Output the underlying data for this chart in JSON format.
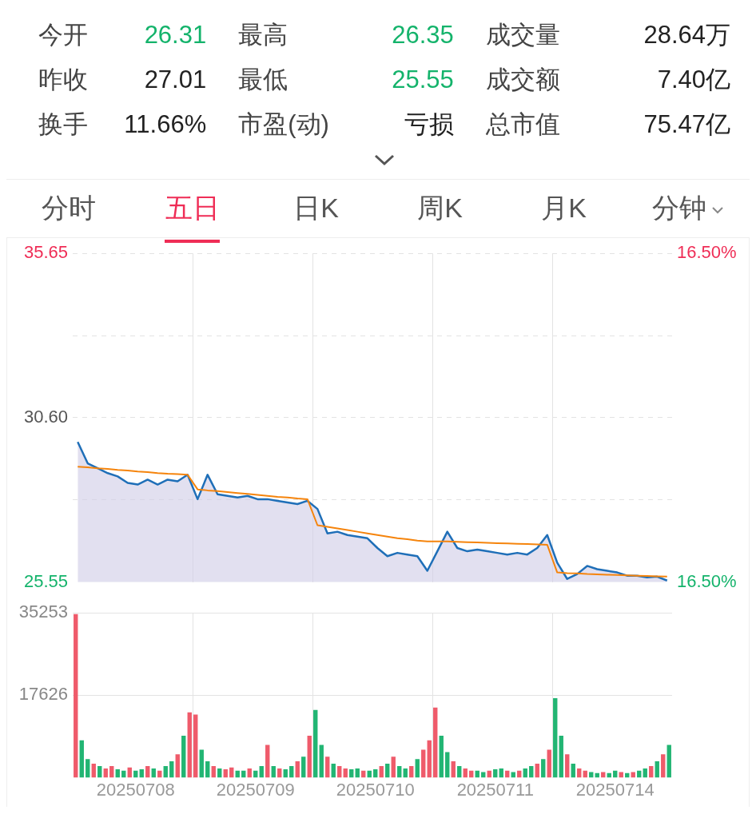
{
  "chart_data": [
    {
      "type": "other",
      "annotations": [
        "今开",
        "26.31",
        "最高",
        "26.35",
        "成交量",
        "28.64万",
        "昨收",
        "27.01",
        "最低",
        "25.55",
        "成交额",
        "7.40亿",
        "换手",
        "11.66%",
        "市盈(动)",
        "亏损",
        "总市值",
        "75.47亿",
        "分时",
        "五日",
        "日K",
        "周K",
        "月K",
        "分钟"
      ]
    },
    {
      "type": "line",
      "categories": [
        null,
        null,
        null,
        null,
        null,
        null,
        null,
        null,
        null,
        null,
        null,
        null,
        null,
        null,
        null,
        null,
        null,
        null,
        null,
        null,
        null,
        null,
        null,
        null,
        null,
        null,
        null,
        null,
        null,
        null,
        null,
        null,
        null,
        null,
        null,
        null,
        null,
        null,
        null,
        null,
        null,
        null,
        null,
        null,
        null,
        null,
        null,
        null,
        null,
        null,
        null,
        null,
        null,
        null,
        null,
        null,
        null,
        null,
        null,
        null
      ],
      "series": [
        {
          "type": "area",
          "color": "#1f6fb8",
          "values": [
            29.86,
            29.2,
            29.05,
            28.9,
            28.8,
            28.6,
            28.55,
            28.7,
            28.55,
            28.7,
            28.65,
            28.85,
            28.1,
            28.85,
            28.25,
            28.2,
            28.15,
            28.2,
            28.1,
            28.1,
            28.05,
            28.0,
            27.95,
            28.05,
            27.8,
            27.05,
            27.1,
            27.0,
            26.95,
            26.9,
            26.6,
            26.35,
            26.45,
            26.4,
            26.35,
            25.9,
            26.5,
            27.1,
            26.6,
            26.5,
            26.55,
            26.5,
            26.45,
            26.4,
            26.45,
            26.4,
            26.6,
            27.0,
            26.15,
            25.65,
            25.8,
            26.05,
            25.95,
            25.9,
            25.85,
            25.75,
            25.75,
            25.7,
            25.72,
            25.6
          ]
        },
        {
          "type": "line",
          "color": "#f5840c",
          "values": [
            29.1,
            29.08,
            29.05,
            29.03,
            29.0,
            28.98,
            28.95,
            28.93,
            28.9,
            28.88,
            28.87,
            28.85,
            28.4,
            28.37,
            28.35,
            28.32,
            28.29,
            28.26,
            28.23,
            28.2,
            28.17,
            28.15,
            28.12,
            28.1,
            27.3,
            27.25,
            27.2,
            27.15,
            27.1,
            27.05,
            27.0,
            26.95,
            26.9,
            26.87,
            26.83,
            26.8,
            26.8,
            26.8,
            26.79,
            26.78,
            26.77,
            26.76,
            26.75,
            26.74,
            26.73,
            26.72,
            26.71,
            26.7,
            25.85,
            25.83,
            25.82,
            25.8,
            25.79,
            25.78,
            25.77,
            25.76,
            25.75,
            25.74,
            25.73,
            25.72
          ]
        }
      ],
      "ylim": [
        25.55,
        35.65
      ],
      "yticks": [
        25.55,
        {
          "value": 28.075,
          "label": null
        },
        {
          "value": 30.6,
          "label": "30.60"
        },
        {
          "value": 33.125,
          "label": null
        },
        35.65
      ],
      "y2lim": [
        -16.5,
        16.5
      ],
      "y2ticks": [
        {
          "value": -16.5,
          "label": "16.50%"
        },
        {
          "value": 16.5,
          "label": "16.50%"
        }
      ],
      "tick_labels": "y",
      "grid": true
    },
    {
      "type": "bar",
      "categories": [
        null,
        null,
        null,
        null,
        null,
        null,
        null,
        null,
        null,
        null,
        "20250708",
        null,
        null,
        null,
        null,
        null,
        null,
        null,
        null,
        null,
        null,
        null,
        null,
        null,
        null,
        null,
        null,
        null,
        null,
        null,
        "20250709",
        null,
        null,
        null,
        null,
        null,
        null,
        null,
        null,
        null,
        null,
        null,
        null,
        null,
        null,
        null,
        null,
        null,
        null,
        null,
        "20250710",
        null,
        null,
        null,
        null,
        null,
        null,
        null,
        null,
        null,
        null,
        null,
        null,
        null,
        null,
        null,
        null,
        null,
        null,
        null,
        "20250711",
        null,
        null,
        null,
        null,
        null,
        null,
        null,
        null,
        null,
        null,
        null,
        null,
        null,
        null,
        null,
        null,
        null,
        null,
        null,
        "20250714",
        null,
        null,
        null,
        null,
        null,
        null,
        null,
        null,
        null
      ],
      "values": [
        35000,
        8000,
        4000,
        3000,
        2500,
        2000,
        2500,
        1800,
        1500,
        2200,
        1500,
        1800,
        2500,
        2000,
        1500,
        2500,
        3500,
        5000,
        9000,
        14000,
        13500,
        6000,
        3500,
        2500,
        2000,
        1800,
        2200,
        1500,
        1500,
        2000,
        1500,
        2500,
        7000,
        2500,
        2000,
        1800,
        2500,
        3500,
        4500,
        9000,
        14500,
        7000,
        4500,
        3000,
        2500,
        2000,
        1800,
        2000,
        1500,
        1500,
        1800,
        2500,
        3000,
        4500,
        2500,
        2000,
        2500,
        4000,
        6000,
        8000,
        15000,
        9000,
        5500,
        3500,
        2500,
        2000,
        1500,
        1500,
        1200,
        1500,
        1800,
        2000,
        1500,
        1200,
        1500,
        2000,
        2500,
        3000,
        4000,
        6000,
        17000,
        9000,
        5000,
        3000,
        2000,
        1500,
        1200,
        1000,
        1200,
        1000,
        1500,
        1200,
        1000,
        1200,
        1500,
        2000,
        2500,
        3500,
        5000,
        7000
      ],
      "colors": [
        "#ef5b6b",
        "#22b573",
        "#22b573",
        "#ef5b6b",
        "#22b573",
        "#ef5b6b",
        "#ef5b6b",
        "#22b573",
        "#22b573",
        "#ef5b6b",
        "#22b573",
        "#22b573",
        "#ef5b6b",
        "#22b573",
        "#ef5b6b",
        "#22b573",
        "#22b573",
        "#ef5b6b",
        "#22b573",
        "#ef5b6b",
        "#ef5b6b",
        "#22b573",
        "#22b573",
        "#ef5b6b",
        "#22b573",
        "#ef5b6b",
        "#ef5b6b",
        "#22b573",
        "#22b573",
        "#ef5b6b",
        "#22b573",
        "#22b573",
        "#ef5b6b",
        "#22b573",
        "#ef5b6b",
        "#22b573",
        "#22b573",
        "#ef5b6b",
        "#22b573",
        "#ef5b6b",
        "#22b573",
        "#22b573",
        "#ef5b6b",
        "#22b573",
        "#ef5b6b",
        "#ef5b6b",
        "#22b573",
        "#22b573",
        "#ef5b6b",
        "#22b573",
        "#22b573",
        "#ef5b6b",
        "#22b573",
        "#ef5b6b",
        "#22b573",
        "#22b573",
        "#ef5b6b",
        "#22b573",
        "#ef5b6b",
        "#ef5b6b",
        "#ef5b6b",
        "#22b573",
        "#22b573",
        "#ef5b6b",
        "#22b573",
        "#ef5b6b",
        "#ef5b6b",
        "#22b573",
        "#22b573",
        "#ef5b6b",
        "#22b573",
        "#22b573",
        "#ef5b6b",
        "#22b573",
        "#ef5b6b",
        "#22b573",
        "#22b573",
        "#ef5b6b",
        "#22b573",
        "#ef5b6b",
        "#22b573",
        "#22b573",
        "#ef5b6b",
        "#22b573",
        "#ef5b6b",
        "#ef5b6b",
        "#22b573",
        "#22b573",
        "#ef5b6b",
        "#22b573",
        "#22b573",
        "#ef5b6b",
        "#22b573",
        "#ef5b6b",
        "#22b573",
        "#22b573",
        "#ef5b6b",
        "#22b573",
        "#ef5b6b",
        "#22b573"
      ],
      "ylim": [
        0,
        35253
      ],
      "yticks": [
        17626,
        35253
      ],
      "grid": true
    }
  ]
}
